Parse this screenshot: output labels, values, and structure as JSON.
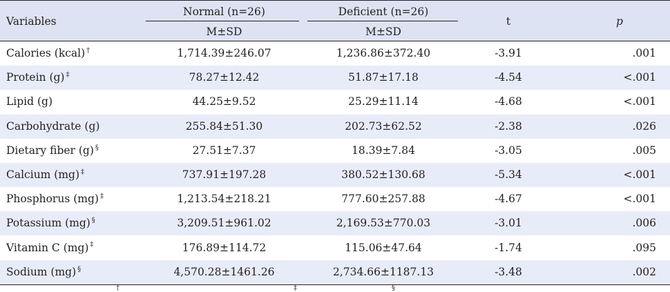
{
  "header": {
    "variables": "Variables",
    "normal": "Normal (n=26)",
    "deficient": "Deficient (n=26)",
    "msd": "M±SD",
    "t": "t",
    "p": "p"
  },
  "rows": [
    {
      "variable": "Calories (kcal)",
      "mark": "†",
      "normal": "1,714.39±246.07",
      "deficient": "1,236.86±372.40",
      "t": "-3.91",
      "p": ".001"
    },
    {
      "variable": "Protein (g)",
      "mark": "‡",
      "normal": "78.27±12.42",
      "deficient": "51.87±17.18",
      "t": "-4.54",
      "p": "<.001"
    },
    {
      "variable": "Lipid (g)",
      "mark": "",
      "normal": "44.25±9.52",
      "deficient": "25.29±11.14",
      "t": "-4.68",
      "p": "<.001"
    },
    {
      "variable": "Carbohydrate (g)",
      "mark": "",
      "normal": "255.84±51.30",
      "deficient": "202.73±62.52",
      "t": "-2.38",
      "p": ".026"
    },
    {
      "variable": "Dietary fiber (g)",
      "mark": "§",
      "normal": "27.51±7.37",
      "deficient": "18.39±7.84",
      "t": "-3.05",
      "p": ".005"
    },
    {
      "variable": "Calcium (mg)",
      "mark": "‡",
      "normal": "737.91±197.28",
      "deficient": "380.52±130.68",
      "t": "-5.34",
      "p": "<.001"
    },
    {
      "variable": "Phosphorus (mg)",
      "mark": "‡",
      "normal": "1,213.54±218.21",
      "deficient": "777.60±257.88",
      "t": "-4.67",
      "p": "<.001"
    },
    {
      "variable": "Potassium (mg)",
      "mark": "§",
      "normal": "3,209.51±961.02",
      "deficient": "2,169.53±770.03",
      "t": "-3.01",
      "p": ".006"
    },
    {
      "variable": "Vitamin C (mg)",
      "mark": "‡",
      "normal": "176.89±114.72",
      "deficient": "115.06±47.64",
      "t": "-1.74",
      "p": ".095"
    },
    {
      "variable": "Sodium (mg)",
      "mark": "§",
      "normal": "4,570.28±1461.26",
      "deficient": "2,734.66±1187.13",
      "t": "-3.48",
      "p": ".002"
    }
  ],
  "footnote_marks": [
    "†",
    "‡",
    "§"
  ]
}
